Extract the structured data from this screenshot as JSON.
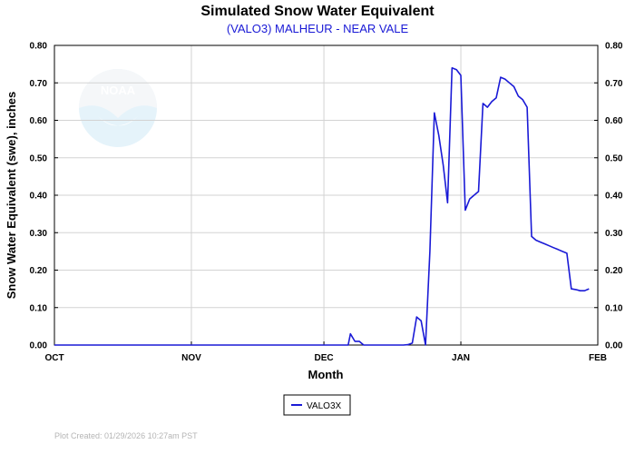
{
  "chart_data": {
    "type": "line",
    "title": "Simulated Snow Water Equivalent",
    "subtitle": "(VALO3) MALHEUR - NEAR VALE",
    "xlabel": "Month",
    "ylabel": "Snow Water Equivalent (swe),  inches",
    "x_ticks": [
      "OCT",
      "NOV",
      "DEC",
      "JAN",
      "FEB"
    ],
    "y_ticks": [
      "0.00",
      "0.10",
      "0.20",
      "0.30",
      "0.40",
      "0.50",
      "0.60",
      "0.70",
      "0.80"
    ],
    "ylim": [
      0,
      0.8
    ],
    "xlim_days": [
      0,
      123
    ],
    "grid": true,
    "legend_position": "bottom-center",
    "series": [
      {
        "name": "VALO3X",
        "color": "#1a1ad6",
        "x_days": [
          0,
          60,
          66.5,
          67,
          68,
          69,
          70,
          71,
          72,
          73,
          74,
          75,
          76,
          77,
          78,
          79,
          80,
          81,
          82,
          83,
          84,
          85,
          86,
          87,
          88,
          89,
          90,
          91,
          92,
          93,
          94,
          95,
          96,
          97,
          98,
          99,
          100,
          101,
          102,
          103,
          104,
          105,
          106,
          107,
          108,
          109,
          110,
          111,
          112,
          113,
          114,
          115,
          116,
          117,
          118,
          119,
          120,
          121
        ],
        "y": [
          0,
          0,
          0,
          0.03,
          0.01,
          0.01,
          0,
          0,
          0,
          0,
          0,
          0,
          0,
          0,
          0,
          0,
          0.001,
          0.005,
          0.075,
          0.065,
          0.0,
          0.25,
          0.62,
          0.56,
          0.48,
          0.38,
          0.74,
          0.735,
          0.72,
          0.36,
          0.39,
          0.4,
          0.41,
          0.645,
          0.635,
          0.65,
          0.66,
          0.715,
          0.71,
          0.7,
          0.69,
          0.665,
          0.655,
          0.635,
          0.29,
          0.28,
          0.275,
          0.27,
          0.265,
          0.26,
          0.255,
          0.25,
          0.245,
          0.15,
          0.148,
          0.145,
          0.145,
          0.15
        ]
      }
    ]
  },
  "legend": {
    "label": "VALO3X"
  },
  "footer": {
    "text": "Plot Created: 01/29/2026 10:27am PST"
  },
  "logo": {
    "text": "NOAA"
  }
}
